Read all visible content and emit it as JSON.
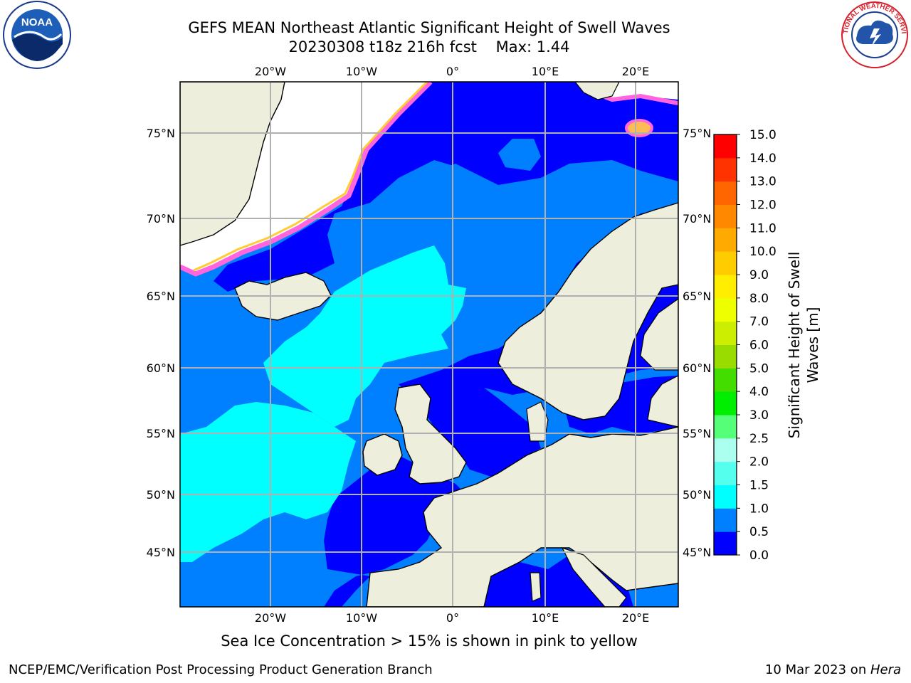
{
  "header": {
    "title_line1": "GEFS MEAN Northeast Atlantic Significant Height of Swell Waves",
    "title_line2": "20230308 t18z 216h fcst    Max: 1.44"
  },
  "logos": {
    "left": {
      "name": "noaa-logo",
      "text": "NOAA"
    },
    "right": {
      "name": "nws-logo",
      "text": "NATIONAL WEATHER SERVICE"
    }
  },
  "map": {
    "lon_ticks_top": [
      "20°W",
      "10°W",
      "0°",
      "10°E",
      "20°E"
    ],
    "lon_ticks_bottom": [
      "20°W",
      "10°W",
      "0°",
      "10°E",
      "20°E"
    ],
    "lat_ticks_left": [
      "75°N",
      "70°N",
      "65°N",
      "60°N",
      "55°N",
      "50°N",
      "45°N"
    ],
    "lat_ticks_right": [
      "75°N",
      "70°N",
      "65°N",
      "60°N",
      "55°N",
      "50°N",
      "45°N"
    ],
    "colors": {
      "land": "#eeeedd",
      "ice": "#ffffff",
      "bin_0_05": "#0000ff",
      "bin_05_1": "#0080ff",
      "bin_1_15": "#00ffff",
      "grid": "#b0b0b0"
    }
  },
  "colorbar": {
    "label_line1": "Significant Height of Swell",
    "label_line2": "Waves [m]",
    "tick_labels": [
      "0.0",
      "0.5",
      "1.0",
      "1.5",
      "2.0",
      "2.5",
      "3.0",
      "4.0",
      "5.0",
      "6.0",
      "7.0",
      "8.0",
      "9.0",
      "10.0",
      "11.0",
      "12.0",
      "13.0",
      "14.0",
      "15.0"
    ],
    "colors": [
      "#0000ff",
      "#0080ff",
      "#00ffff",
      "#55ffee",
      "#aaffee",
      "#55ff77",
      "#00ee00",
      "#44dd00",
      "#99dd00",
      "#ccee00",
      "#eeff00",
      "#ffee00",
      "#ffcc00",
      "#ffaa00",
      "#ff8800",
      "#ff6600",
      "#ff3300",
      "#ff0000"
    ]
  },
  "note": "Sea Ice Concentration > 15% is shown in pink to yellow",
  "footer": {
    "left": "NCEP/EMC/Verification Post Processing Product Generation Branch",
    "right_date": "10 Mar 2023 on ",
    "right_host": "Hera"
  }
}
